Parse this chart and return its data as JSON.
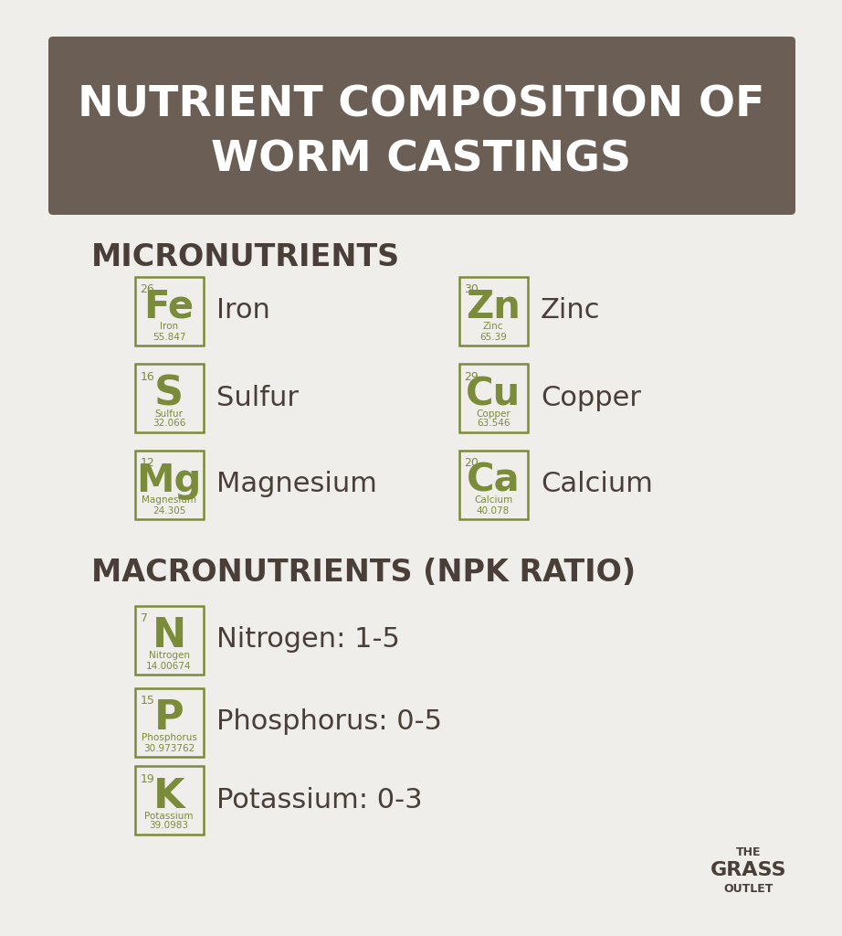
{
  "title_line1": "NUTRIENT COMPOSITION OF",
  "title_line2": "WORM CASTINGS",
  "title_bg": "#6b5e54",
  "title_text_color": "#ffffff",
  "bg_color": "#f0eeeb",
  "section1_title": "MICRONUTRIENTS",
  "section2_title": "MACRONUTRIENTS (NPK RATIO)",
  "section_title_color": "#4a3f38",
  "element_border_color": "#7a8c3a",
  "element_symbol_color": "#7a8c3a",
  "element_text_color": "#7a8c3a",
  "micronutrients": [
    {
      "symbol": "Fe",
      "name": "Iron",
      "number": "26",
      "mass": "55.847",
      "label": "Iron",
      "col": 0,
      "row": 0
    },
    {
      "symbol": "S",
      "name": "Sulfur",
      "number": "16",
      "mass": "32.066",
      "label": "Sulfur",
      "col": 0,
      "row": 1
    },
    {
      "symbol": "Mg",
      "name": "Magnesium",
      "number": "12",
      "mass": "24.305",
      "label": "Magnesium",
      "col": 0,
      "row": 2
    },
    {
      "symbol": "Zn",
      "name": "Zinc",
      "number": "30",
      "mass": "65.39",
      "label": "Zinc",
      "col": 1,
      "row": 0
    },
    {
      "symbol": "Cu",
      "name": "Copper",
      "number": "29",
      "mass": "63.546",
      "label": "Copper",
      "col": 1,
      "row": 1
    },
    {
      "symbol": "Ca",
      "name": "Calcium",
      "number": "20",
      "mass": "40.078",
      "label": "Calcium",
      "col": 1,
      "row": 2
    }
  ],
  "macronutrients": [
    {
      "symbol": "N",
      "name": "Nitrogen",
      "number": "7",
      "mass": "14.00674",
      "label": "Nitrogen: 1-5"
    },
    {
      "symbol": "P",
      "name": "Phosphorus",
      "number": "15",
      "mass": "30.973762",
      "label": "Phosphorus: 0-5"
    },
    {
      "symbol": "K",
      "name": "Potassium",
      "number": "19",
      "mass": "39.0983",
      "label": "Potassium: 0-3"
    }
  ]
}
